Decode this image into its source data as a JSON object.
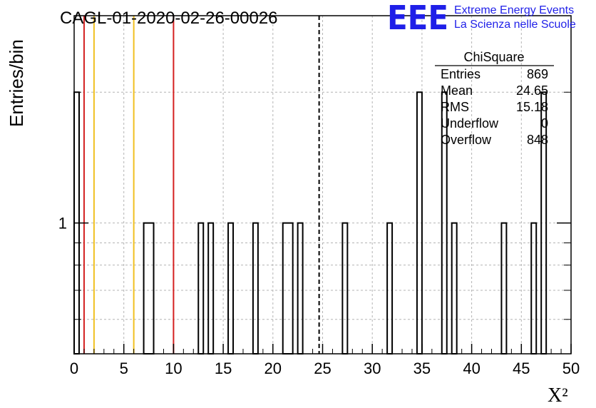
{
  "title": "CAGL-01-2020-02-26-00026",
  "logo": {
    "letters": "EEE",
    "line1": "Extreme Energy Events",
    "line2": "La Scienza nelle Scuole",
    "color": "#1f1fe8"
  },
  "stats_box": {
    "title": "ChiSquare",
    "rows": [
      {
        "label": "Entries",
        "value": "869"
      },
      {
        "label": "Mean",
        "value": "24.65"
      },
      {
        "label": "RMS",
        "value": "15.18"
      },
      {
        "label": "Underflow",
        "value": "0"
      },
      {
        "label": "Overflow",
        "value": "848"
      }
    ]
  },
  "chart_data": {
    "type": "bar",
    "histogram": true,
    "title": "CAGL-01-2020-02-26-00026",
    "xlabel": "X²",
    "ylabel": "Entries/bin",
    "xlim": [
      0,
      50
    ],
    "ylim": [
      0.5,
      3
    ],
    "y_log_scale": true,
    "grid": true,
    "legend": "top-right",
    "x_ticks": [
      "0",
      "5",
      "10",
      "15",
      "20",
      "25",
      "30",
      "35",
      "40",
      "45",
      "50"
    ],
    "y_ticks": [
      "1"
    ],
    "bin_width": 0.5,
    "bins": [
      {
        "x0": 0.0,
        "x1": 0.5,
        "count": 2
      },
      {
        "x0": 7.0,
        "x1": 8.0,
        "count": 1
      },
      {
        "x0": 12.5,
        "x1": 13.0,
        "count": 1
      },
      {
        "x0": 13.5,
        "x1": 14.0,
        "count": 1
      },
      {
        "x0": 15.5,
        "x1": 16.0,
        "count": 1
      },
      {
        "x0": 18.0,
        "x1": 18.5,
        "count": 1
      },
      {
        "x0": 21.0,
        "x1": 22.0,
        "count": 1
      },
      {
        "x0": 22.5,
        "x1": 23.0,
        "count": 1
      },
      {
        "x0": 27.0,
        "x1": 27.5,
        "count": 1
      },
      {
        "x0": 31.5,
        "x1": 32.0,
        "count": 1
      },
      {
        "x0": 34.5,
        "x1": 35.0,
        "count": 2
      },
      {
        "x0": 37.0,
        "x1": 37.5,
        "count": 2
      },
      {
        "x0": 38.0,
        "x1": 38.5,
        "count": 1
      },
      {
        "x0": 43.0,
        "x1": 43.5,
        "count": 1
      },
      {
        "x0": 46.0,
        "x1": 46.5,
        "count": 1
      },
      {
        "x0": 47.0,
        "x1": 47.5,
        "count": 2
      }
    ],
    "reference_lines": [
      {
        "x": 1.0,
        "color": "#d42020",
        "style": "solid"
      },
      {
        "x": 2.0,
        "color": "#f0c020",
        "style": "solid"
      },
      {
        "x": 6.0,
        "color": "#f0c020",
        "style": "solid"
      },
      {
        "x": 10.0,
        "color": "#d42020",
        "style": "solid"
      },
      {
        "x": 24.65,
        "color": "#000000",
        "style": "dashed"
      }
    ]
  }
}
